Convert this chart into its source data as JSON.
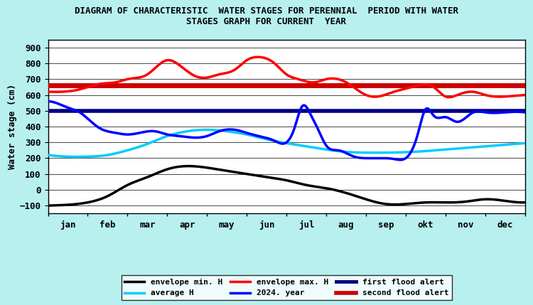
{
  "title": "DIAGRAM OF CHARACTERISTIC  WATER STAGES FOR PERENNIAL  PERIOD WITH WATER\nSTAGES GRAPH FOR CURRENT  YEAR",
  "ylabel": "Water stage (cm)",
  "xlabel_months": [
    "jan",
    "feb",
    "mar",
    "apr",
    "may",
    "jun",
    "jul",
    "aug",
    "sep",
    "okt",
    "nov",
    "dec"
  ],
  "ylim": [
    -150,
    950
  ],
  "yticks": [
    -100,
    0,
    100,
    200,
    300,
    400,
    500,
    600,
    700,
    800,
    900
  ],
  "background_color": "#b8f0f0",
  "plot_background": "#ffffff",
  "first_flood_alert": 500,
  "second_flood_alert": 660,
  "colors": {
    "envelope_min": "#000000",
    "envelope_max": "#ff0000",
    "average": "#00ccff",
    "current_year": "#0000ff",
    "first_flood": "#000080",
    "second_flood": "#cc0000"
  },
  "linewidths": {
    "envelope_min": 2.5,
    "envelope_max": 2.5,
    "average": 2.5,
    "current_year": 2.5,
    "first_flood": 4.0,
    "second_flood": 5.0
  }
}
